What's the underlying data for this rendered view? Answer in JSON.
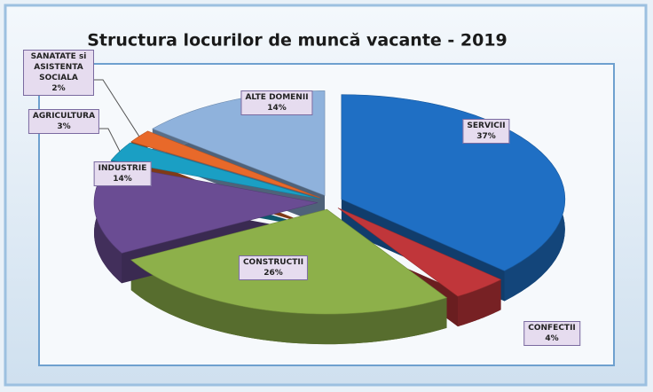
{
  "chart_data": {
    "type": "pie",
    "title": "Structura locurilor de muncă vacante - 2019",
    "categories": [
      "SERVICII",
      "CONFECTII",
      "CONSTRUCTII",
      "INDUSTRIE",
      "AGRICULTURA",
      "SANATATE si ASISTENTA SOCIALA",
      "ALTE DOMENII"
    ],
    "values": [
      37,
      4,
      26,
      14,
      3,
      2,
      14
    ],
    "value_labels": [
      "37%",
      "4%",
      "26%",
      "14%",
      "3%",
      "2%",
      "14%"
    ],
    "colors": [
      "#1f6fc4",
      "#c0363a",
      "#8db04a",
      "#6a4c93",
      "#1a9fc4",
      "#e8692a",
      "#8fb2dc"
    ]
  }
}
